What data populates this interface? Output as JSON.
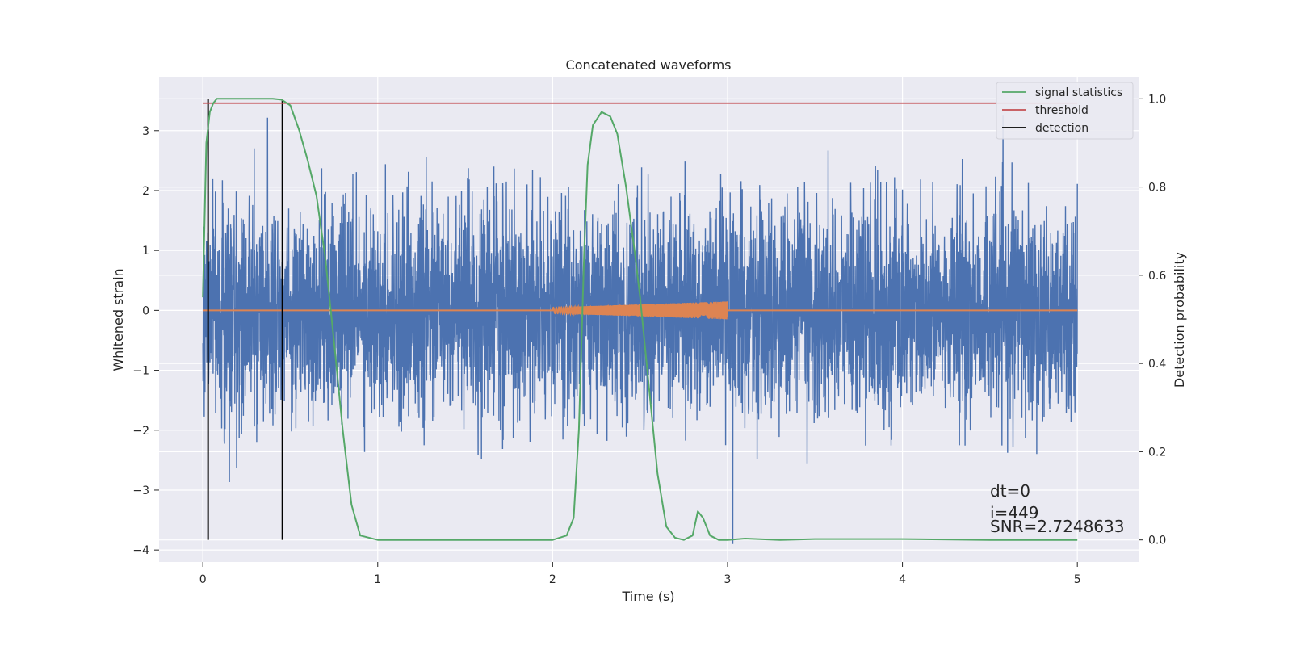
{
  "chart_data": {
    "type": "line",
    "title": "Concatenated waveforms",
    "xlabel": "Time (s)",
    "ylabel": "Whitened strain",
    "ylabel_right": "Detection probability",
    "xlim": [
      -0.25,
      5.35
    ],
    "ylim": [
      -4.2,
      3.9
    ],
    "ylim_right": [
      -0.05,
      1.05
    ],
    "xticks": [
      0,
      1,
      2,
      3,
      4,
      5
    ],
    "yticks": [
      -4,
      -3,
      -2,
      -1,
      0,
      1,
      2,
      3
    ],
    "yticks_right": [
      0.0,
      0.2,
      0.4,
      0.6,
      0.8,
      1.0
    ],
    "grid": true,
    "legend_position": "top-right",
    "colors": {
      "strain": "#4c72b0",
      "injection": "#dd8452",
      "signal_statistics": "#55a868",
      "threshold": "#c44e52",
      "detection": "#000000",
      "plot_background": "#eaeaf2",
      "grid": "#ffffff"
    },
    "series": [
      {
        "name": "",
        "role": "strain",
        "axis": "left",
        "x_range": [
          0,
          5
        ],
        "amplitude_typical": 1.5,
        "amplitude_peak": 3.9
      },
      {
        "name": "",
        "role": "injection",
        "axis": "left",
        "x_range": [
          2,
          3
        ],
        "amplitude_start": 0.05,
        "amplitude_end": 0.15
      },
      {
        "name": "signal statistics",
        "role": "signal_statistics",
        "axis": "right",
        "x": [
          0,
          0.02,
          0.04,
          0.06,
          0.08,
          0.1,
          0.2,
          0.3,
          0.4,
          0.45,
          0.5,
          0.55,
          0.6,
          0.65,
          0.7,
          0.75,
          0.8,
          0.85,
          0.9,
          1.0,
          1.5,
          2.0,
          2.08,
          2.12,
          2.15,
          2.18,
          2.2,
          2.23,
          2.28,
          2.33,
          2.37,
          2.42,
          2.47,
          2.5,
          2.55,
          2.6,
          2.65,
          2.7,
          2.75,
          2.8,
          2.83,
          2.86,
          2.9,
          2.95,
          3.0,
          3.1,
          3.3,
          3.5,
          4.0,
          4.5,
          5.0
        ],
        "y": [
          0.55,
          0.9,
          0.97,
          0.99,
          1.0,
          1.0,
          1.0,
          1.0,
          1.0,
          0.998,
          0.985,
          0.93,
          0.86,
          0.78,
          0.64,
          0.45,
          0.25,
          0.08,
          0.01,
          0.0,
          0.0,
          0.0,
          0.01,
          0.05,
          0.25,
          0.65,
          0.85,
          0.94,
          0.97,
          0.96,
          0.92,
          0.8,
          0.65,
          0.55,
          0.35,
          0.15,
          0.03,
          0.005,
          0.0,
          0.01,
          0.065,
          0.05,
          0.01,
          0.0,
          0.0,
          0.003,
          0.0,
          0.002,
          0.002,
          0.0,
          0.0
        ]
      },
      {
        "name": "threshold",
        "role": "threshold",
        "axis": "right",
        "x": [
          0,
          5
        ],
        "y": [
          0.99,
          0.99
        ]
      },
      {
        "name": "detection",
        "role": "detection",
        "axis": "right",
        "x": [
          0.03,
          0.455
        ]
      }
    ],
    "annotations": [
      "dt=0",
      "i=449",
      "SNR=2.7248633"
    ]
  }
}
